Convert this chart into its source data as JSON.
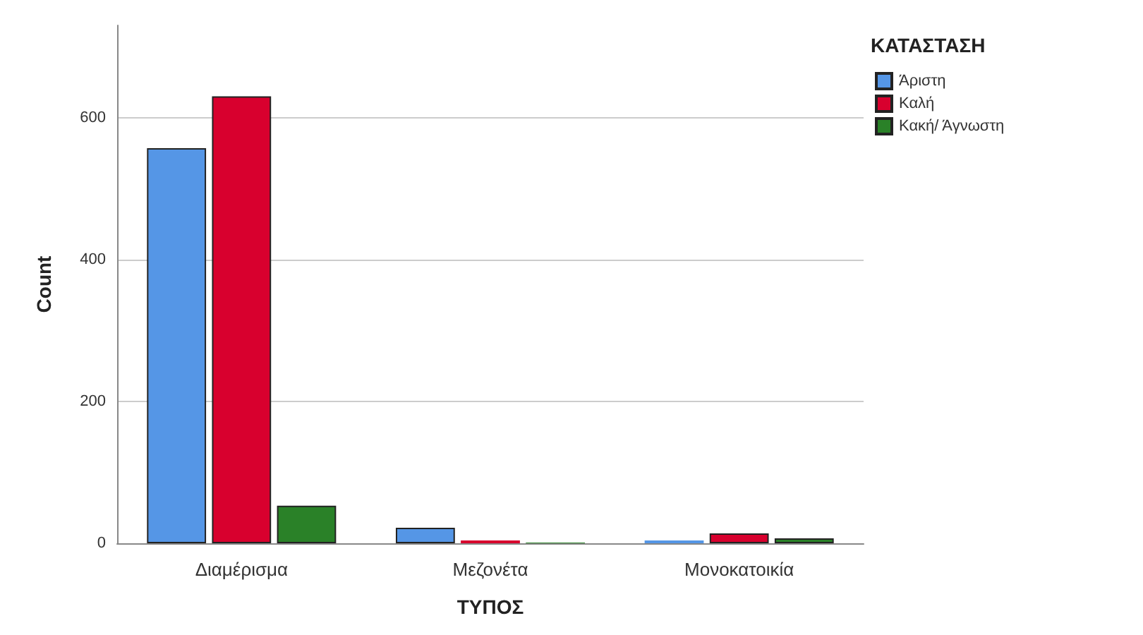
{
  "chart_data": {
    "type": "bar",
    "xlabel": "ΤΥΠΟΣ",
    "ylabel": "Count",
    "legend_title": "ΚΑΤΑΣΤΑΣΗ",
    "categories": [
      "Διαμέρισμα",
      "Μεζονέτα",
      "Μονοκατοικία"
    ],
    "series": [
      {
        "name": "Άριστη",
        "color": "#5596e6",
        "values": [
          557,
          22,
          4
        ]
      },
      {
        "name": "Καλή",
        "color": "#d8002e",
        "values": [
          630,
          4,
          14
        ]
      },
      {
        "name": "Κακή/ Άγνωστη",
        "color": "#2a8128",
        "values": [
          53,
          1,
          7
        ]
      }
    ],
    "ylim": [
      0,
      730
    ],
    "yticks": [
      0,
      200,
      400,
      600
    ],
    "grid": "y",
    "legend": "top right"
  }
}
